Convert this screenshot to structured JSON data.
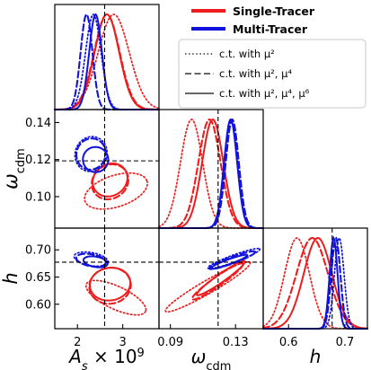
{
  "chart_data": {
    "type": "corner",
    "parameters": [
      {
        "key": "As",
        "ylabel": "",
        "xlabel": "A_s × 10^9",
        "range": [
          1.5,
          3.8
        ],
        "ticks": [
          2,
          3
        ],
        "ticklabels": [
          "2",
          "3"
        ],
        "fiducial": 2.6
      },
      {
        "key": "omega_cdm",
        "ylabel": "ω_cdm",
        "xlabel": "ω_cdm",
        "range": [
          0.083,
          0.147
        ],
        "ticks": [
          0.09,
          0.13
        ],
        "ticklabels": [
          "0.09",
          "0.13"
        ],
        "yticks": [
          0.1,
          0.12,
          0.14
        ],
        "yticklabels": [
          "0.10",
          "0.12",
          "0.14"
        ],
        "fiducial": 0.1193
      },
      {
        "key": "h",
        "ylabel": "h",
        "xlabel": "h",
        "range": [
          0.555,
          0.74
        ],
        "ticks": [
          0.6,
          0.7
        ],
        "ticklabels": [
          "0.6",
          "0.7"
        ],
        "yticks": [
          0.6,
          0.65,
          0.7
        ],
        "yticklabels": [
          "0.60",
          "0.65",
          "0.70"
        ],
        "fiducial": 0.6774
      }
    ],
    "legend": {
      "tracers": [
        {
          "label": "Single-Tracer",
          "color": "#ee1c1c"
        },
        {
          "label": "Multi-Tracer",
          "color": "#1212dd"
        }
      ],
      "constraints": [
        {
          "label": "c.t. with μ²",
          "style": "dotted"
        },
        {
          "label": "c.t. with μ², μ⁴",
          "style": "dashed"
        },
        {
          "label": "c.t. with μ², μ⁴, μ⁶",
          "style": "solid"
        }
      ]
    },
    "series": [
      {
        "tracer": "single",
        "ct": "dotted",
        "color": "#ee1c1c",
        "mean": {
          "As": 2.8,
          "omega_cdm": 0.103,
          "h": 0.615
        },
        "sigma": {
          "As": 0.34,
          "omega_cdm": 0.0068,
          "h": 0.022
        },
        "ellipses": [
          {
            "pair": [
              "As",
              "omega_cdm"
            ],
            "cx": 2.85,
            "cy": 0.103,
            "rx": 0.72,
            "ry": 0.0085,
            "rot": 18
          },
          {
            "pair": [
              "As",
              "h"
            ],
            "cx": 2.85,
            "cy": 0.612,
            "rx": 0.72,
            "ry": 0.021,
            "rot": -25
          },
          {
            "pair": [
              "omega_cdm",
              "h"
            ],
            "cx": 0.113,
            "cy": 0.632,
            "rx": 0.03,
            "ry": 0.012,
            "rot": 30
          }
        ]
      },
      {
        "tracer": "single",
        "ct": "dashed",
        "color": "#ee1c1c",
        "mean": {
          "As": 2.65,
          "omega_cdm": 0.114,
          "h": 0.642
        },
        "sigma": {
          "As": 0.28,
          "omega_cdm": 0.0068,
          "h": 0.028
        },
        "ellipses": [
          {
            "pair": [
              "As",
              "omega_cdm"
            ],
            "cx": 2.72,
            "cy": 0.108,
            "rx": 0.42,
            "ry": 0.009,
            "rot": 35
          },
          {
            "pair": [
              "As",
              "h"
            ],
            "cx": 2.72,
            "cy": 0.634,
            "rx": 0.46,
            "ry": 0.033,
            "rot": 10
          },
          {
            "pair": [
              "omega_cdm",
              "h"
            ],
            "cx": 0.119,
            "cy": 0.642,
            "rx": 0.019,
            "ry": 0.0085,
            "rot": 35
          }
        ]
      },
      {
        "tracer": "single",
        "ct": "solid",
        "color": "#ee1c1c",
        "mean": {
          "As": 2.65,
          "omega_cdm": 0.116,
          "h": 0.652
        },
        "sigma": {
          "As": 0.27,
          "omega_cdm": 0.0065,
          "h": 0.025
        },
        "ellipses": [
          {
            "pair": [
              "As",
              "omega_cdm"
            ],
            "cx": 2.72,
            "cy": 0.109,
            "rx": 0.4,
            "ry": 0.0085,
            "rot": 35
          },
          {
            "pair": [
              "As",
              "h"
            ],
            "cx": 2.72,
            "cy": 0.637,
            "rx": 0.45,
            "ry": 0.03,
            "rot": 10
          },
          {
            "pair": [
              "omega_cdm",
              "h"
            ],
            "cx": 0.121,
            "cy": 0.648,
            "rx": 0.018,
            "ry": 0.0075,
            "rot": 35
          }
        ]
      },
      {
        "tracer": "multi",
        "ct": "dotted",
        "color": "#1212dd",
        "mean": {
          "As": 2.35,
          "omega_cdm": 0.127,
          "h": 0.69
        },
        "sigma": {
          "As": 0.17,
          "omega_cdm": 0.004,
          "h": 0.0085
        },
        "ellipses": [
          {
            "pair": [
              "As",
              "omega_cdm"
            ],
            "cx": 2.3,
            "cy": 0.123,
            "rx": 0.35,
            "ry": 0.0095,
            "rot": -20
          },
          {
            "pair": [
              "As",
              "h"
            ],
            "cx": 2.3,
            "cy": 0.683,
            "rx": 0.38,
            "ry": 0.012,
            "rot": -10
          },
          {
            "pair": [
              "omega_cdm",
              "h"
            ],
            "cx": 0.129,
            "cy": 0.684,
            "rx": 0.017,
            "ry": 0.0065,
            "rot": 20
          }
        ]
      },
      {
        "tracer": "multi",
        "ct": "dashed",
        "color": "#1212dd",
        "mean": {
          "As": 2.2,
          "omega_cdm": 0.128,
          "h": 0.684
        },
        "sigma": {
          "As": 0.13,
          "omega_cdm": 0.004,
          "h": 0.008
        },
        "ellipses": [
          {
            "pair": [
              "As",
              "omega_cdm"
            ],
            "cx": 2.3,
            "cy": 0.123,
            "rx": 0.32,
            "ry": 0.0085,
            "rot": -20
          },
          {
            "pair": [
              "As",
              "h"
            ],
            "cx": 2.3,
            "cy": 0.681,
            "rx": 0.33,
            "ry": 0.011,
            "rot": -10
          },
          {
            "pair": [
              "omega_cdm",
              "h"
            ],
            "cx": 0.128,
            "cy": 0.681,
            "rx": 0.015,
            "ry": 0.006,
            "rot": 20
          }
        ]
      },
      {
        "tracer": "multi",
        "ct": "solid",
        "color": "#1212dd",
        "mean": {
          "As": 2.4,
          "omega_cdm": 0.127,
          "h": 0.68
        },
        "sigma": {
          "As": 0.14,
          "omega_cdm": 0.004,
          "h": 0.007
        },
        "ellipses": [
          {
            "pair": [
              "As",
              "omega_cdm"
            ],
            "cx": 2.4,
            "cy": 0.12,
            "rx": 0.28,
            "ry": 0.0068,
            "rot": -25
          },
          {
            "pair": [
              "As",
              "h"
            ],
            "cx": 2.4,
            "cy": 0.678,
            "rx": 0.27,
            "ry": 0.0095,
            "rot": -10
          },
          {
            "pair": [
              "omega_cdm",
              "h"
            ],
            "cx": 0.126,
            "cy": 0.678,
            "rx": 0.012,
            "ry": 0.0045,
            "rot": 20
          }
        ]
      }
    ]
  }
}
